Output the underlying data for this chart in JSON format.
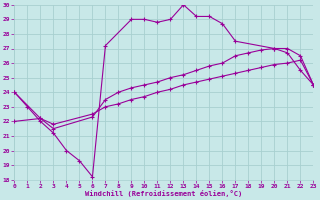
{
  "xlabel": "Windchill (Refroidissement éolien,°C)",
  "bg_color": "#c8e8e8",
  "grid_color": "#a8d0d0",
  "line_color": "#990099",
  "xmin": 0,
  "xmax": 23,
  "ymin": 18,
  "ymax": 30,
  "series1_x": [
    0,
    1,
    2,
    3,
    4,
    5,
    6,
    7,
    9,
    10,
    11,
    12,
    13,
    14,
    15,
    16,
    17,
    20,
    21,
    22,
    23
  ],
  "series1_y": [
    24.0,
    23.0,
    22.0,
    21.2,
    20.0,
    19.3,
    18.2,
    27.2,
    29.0,
    29.0,
    28.8,
    29.0,
    30.0,
    29.2,
    29.2,
    28.7,
    27.5,
    27.0,
    26.7,
    25.5,
    24.5
  ],
  "series2_x": [
    0,
    2,
    3,
    6,
    7,
    8,
    9,
    10,
    11,
    12,
    13,
    14,
    15,
    16,
    17,
    18,
    19,
    20,
    21,
    22,
    23
  ],
  "series2_y": [
    24.0,
    22.2,
    21.5,
    22.3,
    23.5,
    24.0,
    24.3,
    24.5,
    24.7,
    25.0,
    25.2,
    25.5,
    25.8,
    26.0,
    26.5,
    26.7,
    26.9,
    27.0,
    27.0,
    26.5,
    24.5
  ],
  "series3_x": [
    0,
    2,
    3,
    6,
    7,
    8,
    9,
    10,
    11,
    12,
    13,
    14,
    15,
    16,
    17,
    18,
    19,
    20,
    21,
    22,
    23
  ],
  "series3_y": [
    22.0,
    22.2,
    21.8,
    22.5,
    23.0,
    23.2,
    23.5,
    23.7,
    24.0,
    24.2,
    24.5,
    24.7,
    24.9,
    25.1,
    25.3,
    25.5,
    25.7,
    25.9,
    26.0,
    26.2,
    24.5
  ]
}
